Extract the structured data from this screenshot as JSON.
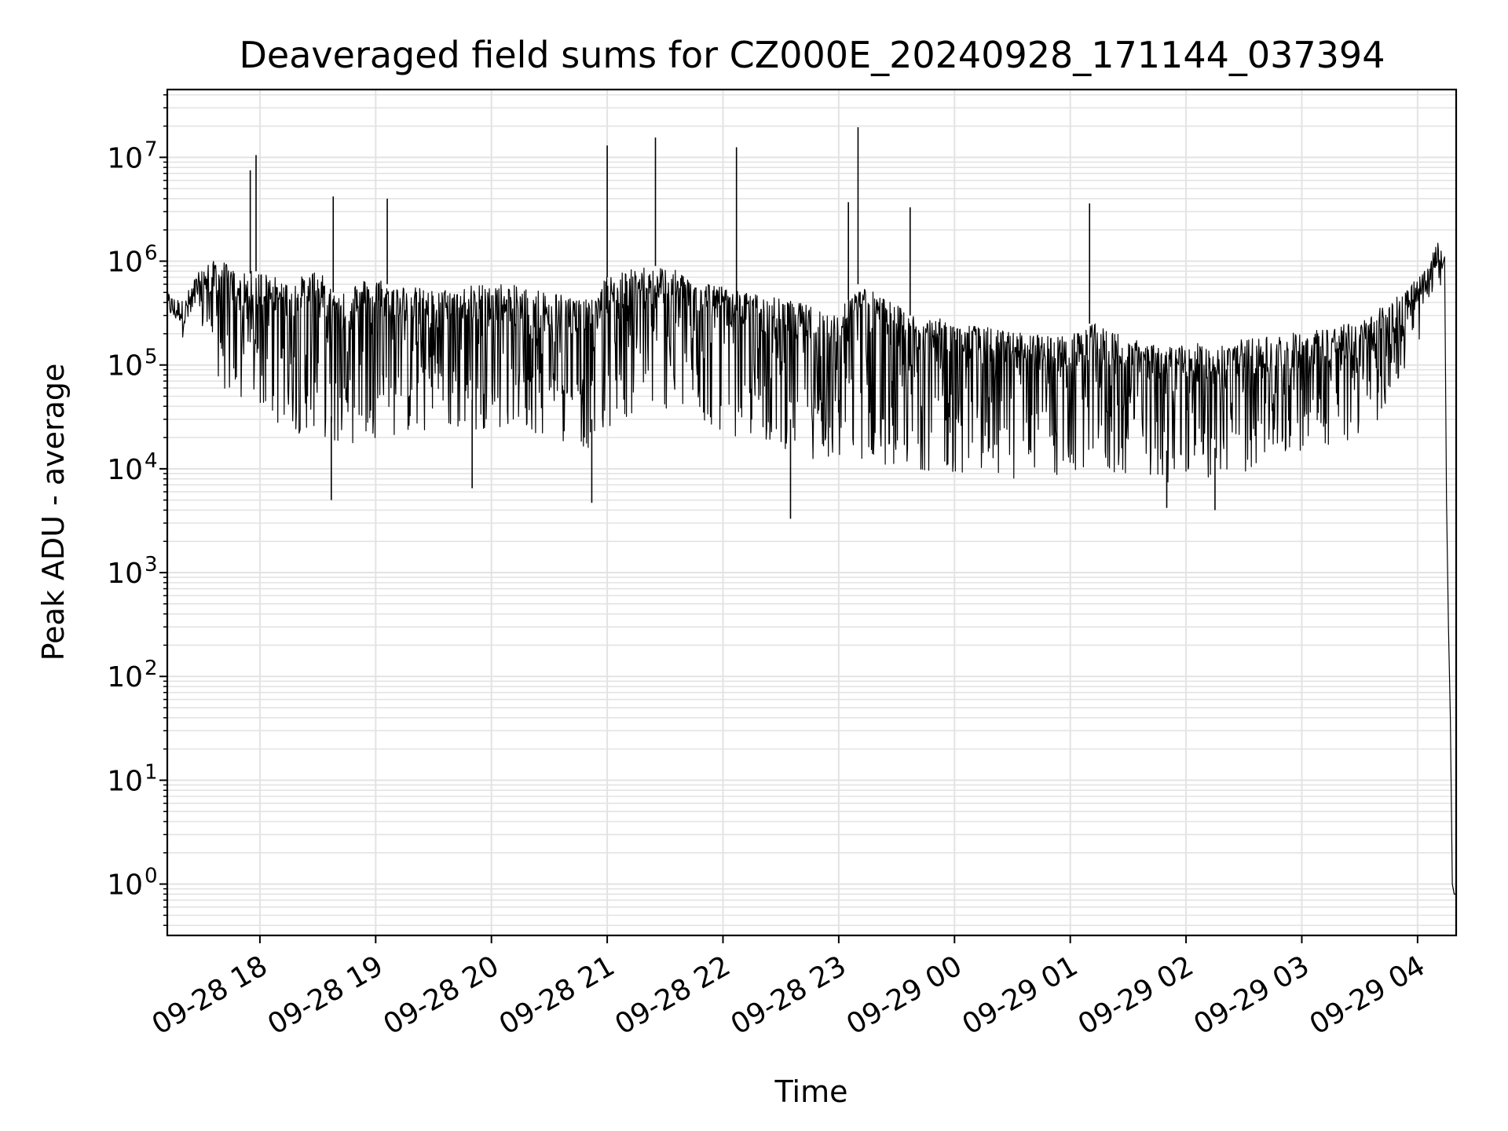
{
  "chart_data": {
    "type": "line",
    "title": "Deaveraged field sums for CZ000E_20240928_171144_037394",
    "xlabel": "Time",
    "ylabel": "Peak ADU - average",
    "xlim": [
      "2024-09-28 17:12",
      "2024-09-29 04:20"
    ],
    "ylim": [
      0.32,
      45000000
    ],
    "yscale": "log",
    "grid": true,
    "line_color": "#000000",
    "x_ticks": [
      "09-28 18",
      "09-28 19",
      "09-28 20",
      "09-28 21",
      "09-28 22",
      "09-28 23",
      "09-29 00",
      "09-29 01",
      "09-29 02",
      "09-29 03",
      "09-29 04"
    ],
    "y_ticks": [
      {
        "base": "10",
        "exp": "0"
      },
      {
        "base": "10",
        "exp": "1"
      },
      {
        "base": "10",
        "exp": "2"
      },
      {
        "base": "10",
        "exp": "3"
      },
      {
        "base": "10",
        "exp": "4"
      },
      {
        "base": "10",
        "exp": "5"
      },
      {
        "base": "10",
        "exp": "6"
      },
      {
        "base": "10",
        "exp": "7"
      }
    ],
    "series": [
      {
        "x": [
          "2024-09-28 17:12",
          "2024-09-28 17:20",
          "2024-09-28 17:30",
          "2024-09-28 17:40",
          "2024-09-28 17:50",
          "2024-09-28 17:58",
          "2024-09-28 18:15",
          "2024-09-28 18:30",
          "2024-09-28 18:38",
          "2024-09-28 19:00",
          "2024-09-28 19:06",
          "2024-09-28 19:30",
          "2024-09-28 20:00",
          "2024-09-28 20:30",
          "2024-09-28 20:52",
          "2024-09-28 21:00",
          "2024-09-28 21:25",
          "2024-09-28 22:07",
          "2024-09-28 22:35",
          "2024-09-28 23:00",
          "2024-09-28 23:10",
          "2024-09-28 23:37",
          "2024-09-29 00:00",
          "2024-09-29 00:30",
          "2024-09-29 01:00",
          "2024-09-29 01:10",
          "2024-09-29 01:40",
          "2024-09-29 02:00",
          "2024-09-29 02:30",
          "2024-09-29 03:00",
          "2024-09-29 03:30",
          "2024-09-29 03:45",
          "2024-09-29 04:05",
          "2024-09-29 04:10",
          "2024-09-29 04:13",
          "2024-09-29 04:15",
          "2024-09-29 04:17",
          "2024-09-29 04:20"
        ],
        "y": [
          500000,
          400000,
          900000,
          1000000,
          700000,
          800000,
          600000,
          800000,
          500000,
          700000,
          600000,
          500000,
          600000,
          500000,
          400000,
          700000,
          900000,
          500000,
          400000,
          300000,
          600000,
          300000,
          250000,
          200000,
          180000,
          250000,
          150000,
          150000,
          170000,
          200000,
          250000,
          400000,
          800000,
          1500000,
          1200000,
          5000,
          200,
          0.8
        ],
        "lower": [
          300000,
          250000,
          200000,
          60000,
          35000,
          40000,
          20000,
          25000,
          15000,
          20000,
          20000,
          20000,
          25000,
          20000,
          15000,
          25000,
          40000,
          20000,
          15000,
          10000,
          12000,
          10000,
          9000,
          8000,
          8000,
          9000,
          8000,
          7000,
          9000,
          15000,
          18000,
          40000,
          250000,
          900000,
          800000,
          5000,
          200,
          0.8
        ],
        "spikes": [
          {
            "x": "2024-09-28 17:55",
            "y": 7500000
          },
          {
            "x": "2024-09-28 17:58",
            "y": 10500000
          },
          {
            "x": "2024-09-28 18:38",
            "y": 4200000
          },
          {
            "x": "2024-09-28 19:06",
            "y": 4000000
          },
          {
            "x": "2024-09-28 21:00",
            "y": 13000000
          },
          {
            "x": "2024-09-28 21:25",
            "y": 15500000
          },
          {
            "x": "2024-09-28 22:07",
            "y": 12500000
          },
          {
            "x": "2024-09-28 23:10",
            "y": 19500000
          },
          {
            "x": "2024-09-28 23:05",
            "y": 3700000
          },
          {
            "x": "2024-09-28 23:37",
            "y": 3300000
          },
          {
            "x": "2024-09-29 01:10",
            "y": 3600000
          }
        ],
        "dips": [
          {
            "x": "2024-09-28 18:37",
            "y": 5000
          },
          {
            "x": "2024-09-28 19:50",
            "y": 6500
          },
          {
            "x": "2024-09-28 20:52",
            "y": 4700
          },
          {
            "x": "2024-09-28 22:35",
            "y": 3300
          },
          {
            "x": "2024-09-29 01:50",
            "y": 4200
          },
          {
            "x": "2024-09-29 02:15",
            "y": 4000
          }
        ]
      }
    ]
  }
}
